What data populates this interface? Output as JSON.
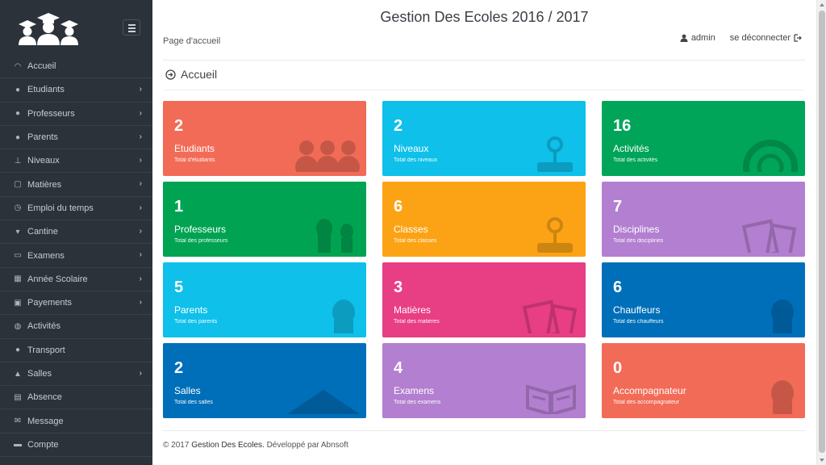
{
  "app": {
    "title": "Gestion Des Ecoles 2016 / 2017"
  },
  "breadcrumb": "Page d'accueil",
  "user": {
    "name": "admin",
    "logout": "se déconnecter"
  },
  "page_heading": "Accueil",
  "sidebar": {
    "items": [
      {
        "label": "Accueil",
        "icon": "dashboard-icon",
        "chevron": false
      },
      {
        "label": "Etudiants",
        "icon": "users-icon",
        "chevron": true
      },
      {
        "label": "Professeurs",
        "icon": "user-group-icon",
        "chevron": true
      },
      {
        "label": "Parents",
        "icon": "user-icon",
        "chevron": true
      },
      {
        "label": "Niveaux",
        "icon": "sitemap-icon",
        "chevron": true
      },
      {
        "label": "Matières",
        "icon": "book-icon",
        "chevron": true
      },
      {
        "label": "Emploi du temps",
        "icon": "clock-icon",
        "chevron": true
      },
      {
        "label": "Cantine",
        "icon": "glass-icon",
        "chevron": true
      },
      {
        "label": "Examens",
        "icon": "open-book-icon",
        "chevron": true
      },
      {
        "label": "Année Scolaire",
        "icon": "calendar-icon",
        "chevron": true
      },
      {
        "label": "Payements",
        "icon": "briefcase-icon",
        "chevron": true
      },
      {
        "label": "Activités",
        "icon": "globe-icon",
        "chevron": false
      },
      {
        "label": "Transport",
        "icon": "map-marker-icon",
        "chevron": false
      },
      {
        "label": "Salles",
        "icon": "home-icon",
        "chevron": true
      },
      {
        "label": "Absence",
        "icon": "list-icon",
        "chevron": false
      },
      {
        "label": "Message",
        "icon": "envelope-icon",
        "chevron": false
      },
      {
        "label": "Compte",
        "icon": "lock-icon",
        "chevron": false
      }
    ]
  },
  "cards": [
    {
      "value": "2",
      "label": "Etudiants",
      "sub": "Total d'étudiants",
      "color": "#f26b57",
      "icon": "users-icon"
    },
    {
      "value": "2",
      "label": "Niveaux",
      "sub": "Total des niveaux",
      "color": "#0ec0ea",
      "icon": "joystick-icon"
    },
    {
      "value": "16",
      "label": "Activités",
      "sub": "Total des activités",
      "color": "#00a559",
      "icon": "lifebuoy-icon"
    },
    {
      "value": "1",
      "label": "Professeurs",
      "sub": "Total des professeurs",
      "color": "#00a351",
      "icon": "teachers-icon"
    },
    {
      "value": "6",
      "label": "Classes",
      "sub": "Total des classes",
      "color": "#fca315",
      "icon": "joystick-icon"
    },
    {
      "value": "7",
      "label": "Disciplines",
      "sub": "Total des disciplines",
      "color": "#b37fd0",
      "icon": "books-icon"
    },
    {
      "value": "5",
      "label": "Parents",
      "sub": "Total des parents",
      "color": "#0ec0ea",
      "icon": "person-icon"
    },
    {
      "value": "3",
      "label": "Matières",
      "sub": "Total des matières",
      "color": "#e83e83",
      "icon": "books-icon"
    },
    {
      "value": "6",
      "label": "Chauffeurs",
      "sub": "Total des chauffeurs",
      "color": "#006fba",
      "icon": "person-icon"
    },
    {
      "value": "2",
      "label": "Salles",
      "sub": "Total des salles",
      "color": "#006fba",
      "icon": "roof-icon"
    },
    {
      "value": "4",
      "label": "Examens",
      "sub": "Total des examens",
      "color": "#b37fd0",
      "icon": "open-book-icon"
    },
    {
      "value": "0",
      "label": "Accompagnateur",
      "sub": "Total des accompagnateur",
      "color": "#f26b57",
      "icon": "person-icon"
    }
  ],
  "footer": {
    "copyright": "© 2017",
    "brand": "Gestion Des Ecoles.",
    "dev": "Développé par",
    "company": "Abnsoft"
  }
}
